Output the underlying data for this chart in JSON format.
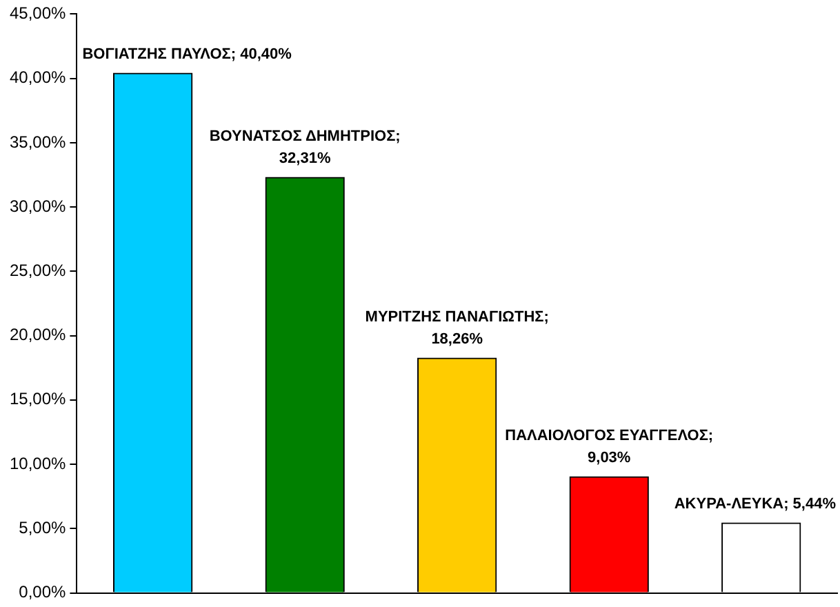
{
  "chart_data": {
    "type": "bar",
    "categories": [
      null,
      null,
      null,
      null,
      null
    ],
    "values": [
      40.4,
      32.31,
      18.26,
      9.03,
      5.44
    ],
    "colors": [
      "#00ccff",
      "#008000",
      "#ffcc00",
      "#ff0000",
      "#ffffff"
    ],
    "value_labels": [
      "ΒΟΓΙΑΤΖΗΣ ΠΑΥΛΟΣ; 40,40%",
      "ΒΟΥΝΑΤΣΟΣ ΔΗΜΗΤΡΙΟΣ;\n32,31%",
      "ΜΥΡΙΤΖΗΣ ΠΑΝΑΓΙΩΤΗΣ;\n18,26%",
      "ΠΑΛΑΙΟΛΟΓΟΣ ΕΥΑΓΓΕΛΟΣ;\n9,03%",
      "ΑΚΥΡΑ-ΛΕΥΚΑ; 5,44%"
    ],
    "ylim": [
      0,
      45
    ],
    "yticks": [
      {
        "value": 0,
        "label": "0,00%"
      },
      {
        "value": 5,
        "label": "5,00%"
      },
      {
        "value": 10,
        "label": "10,00%"
      },
      {
        "value": 15,
        "label": "15,00%"
      },
      {
        "value": 20,
        "label": "20,00%"
      },
      {
        "value": 25,
        "label": "25,00%"
      },
      {
        "value": 30,
        "label": "30,00%"
      },
      {
        "value": 35,
        "label": "35,00%"
      },
      {
        "value": 40,
        "label": "40,00%"
      },
      {
        "value": 45,
        "label": "45,00%"
      }
    ],
    "grid": false,
    "legend": false
  }
}
